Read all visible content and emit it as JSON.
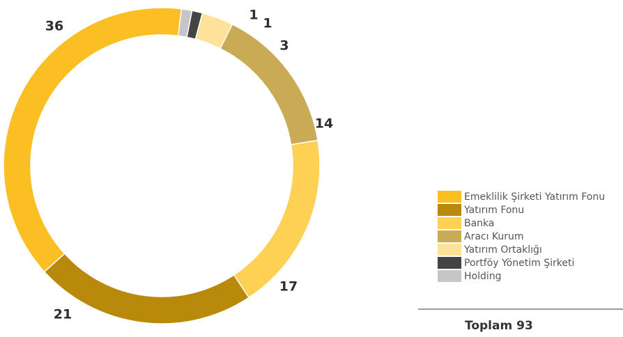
{
  "chart_data": {
    "type": "pie",
    "donut": true,
    "series": [
      {
        "name": "Emeklilik Şirketi Yatırım Fonu",
        "value": 36,
        "color": "#FCBF23"
      },
      {
        "name": "Yatırım Fonu",
        "value": 21,
        "color": "#B8890B"
      },
      {
        "name": "Banka",
        "value": 17,
        "color": "#FED155"
      },
      {
        "name": "Aracı Kurum",
        "value": 14,
        "color": "#C9AB55"
      },
      {
        "name": "Yatırım Ortaklığı",
        "value": 3,
        "color": "#FFE29A"
      },
      {
        "name": "Portföy Yönetim Şirketi",
        "value": 1,
        "color": "#444444"
      },
      {
        "name": "Holding",
        "value": 1,
        "color": "#C6C6C6"
      }
    ],
    "total_label": "Toplam 93",
    "legend_position": "right"
  }
}
